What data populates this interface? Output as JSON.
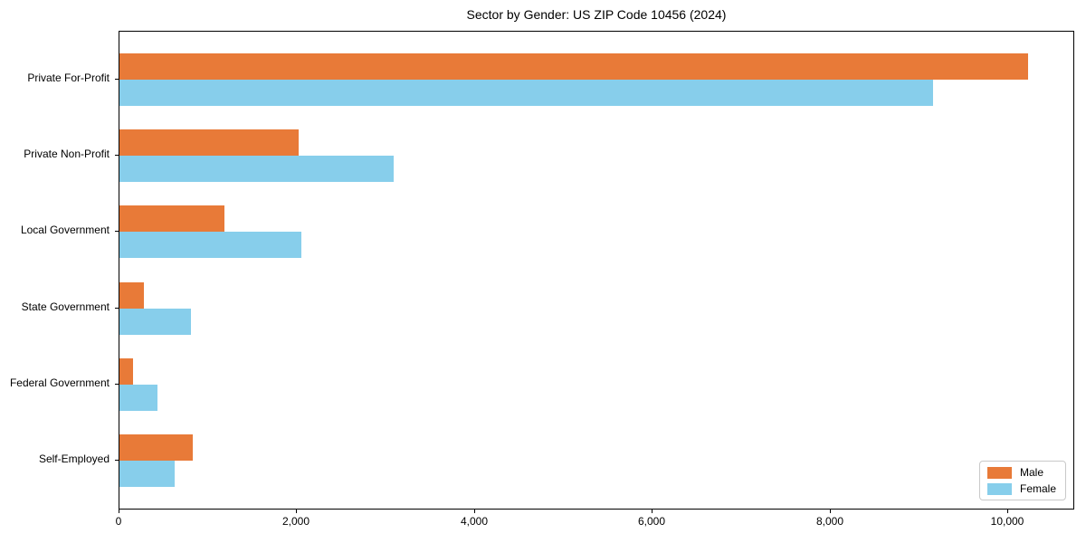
{
  "chart_data": {
    "type": "bar",
    "orientation": "horizontal",
    "title": "Sector by Gender: US ZIP Code 10456 (2024)",
    "categories": [
      "Private For-Profit",
      "Private Non-Profit",
      "Local Government",
      "State Government",
      "Federal Government",
      "Self-Employed"
    ],
    "series": [
      {
        "name": "Male",
        "color": "#e87a38",
        "values": [
          10225,
          2015,
          1180,
          275,
          155,
          825
        ]
      },
      {
        "name": "Female",
        "color": "#87ceeb",
        "values": [
          9155,
          3085,
          2050,
          805,
          430,
          620
        ]
      }
    ],
    "xlabel": "",
    "ylabel": "",
    "xlim": [
      0,
      10750
    ],
    "xticks": [
      0,
      2000,
      4000,
      6000,
      8000,
      10000
    ],
    "xtick_labels": [
      "0",
      "2,000",
      "4,000",
      "6,000",
      "8,000",
      "10,000"
    ],
    "grid": false,
    "legend_position": "lower right",
    "colors": {
      "axis": "#000000",
      "text": "#000000",
      "background": "#ffffff",
      "legend_border": "#c9c9c9"
    }
  }
}
